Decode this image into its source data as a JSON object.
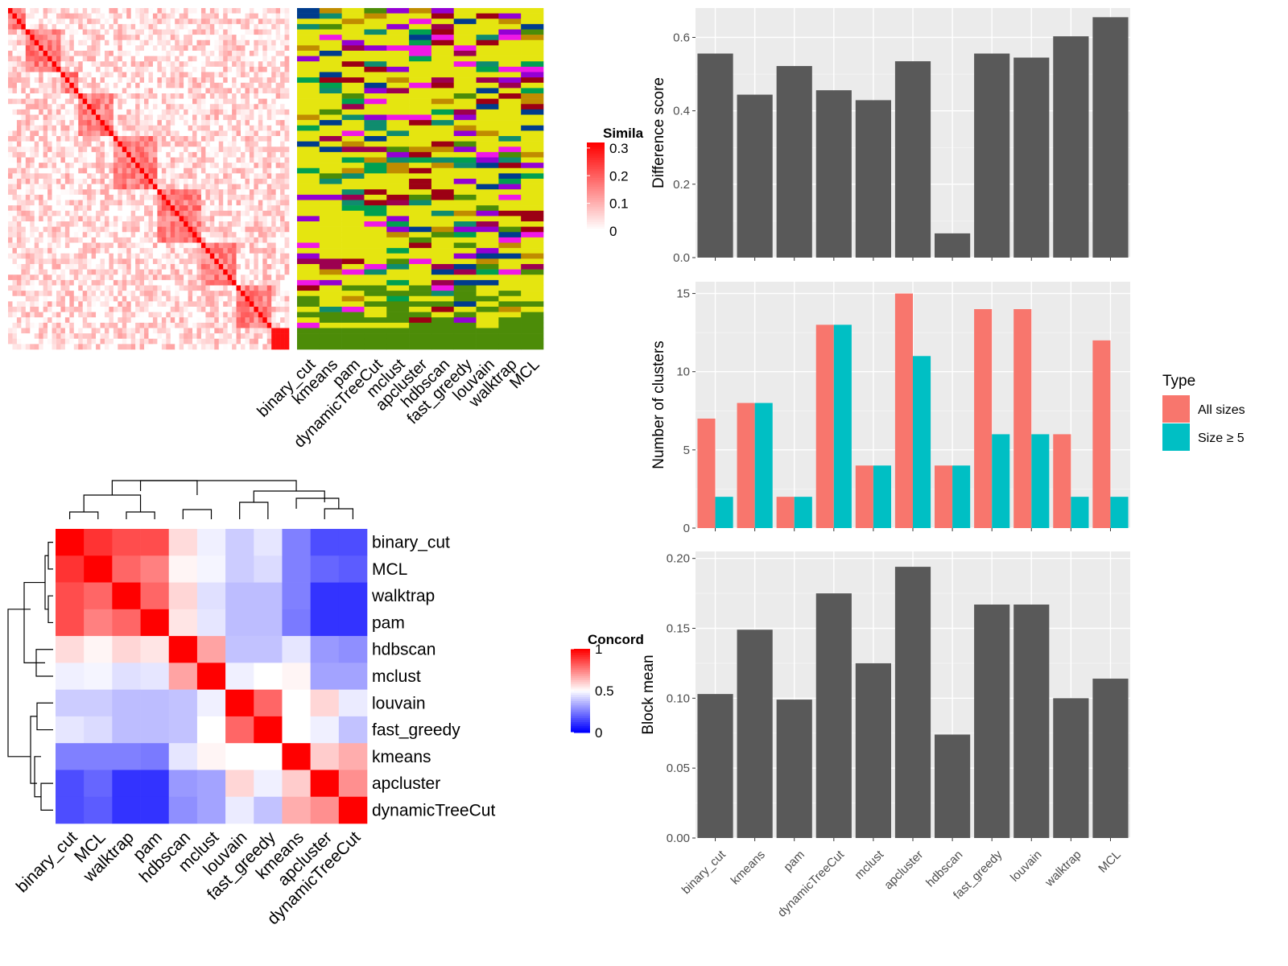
{
  "colors": {
    "bar_dark": "#595959",
    "panel_bg": "#ebebeb",
    "grid": "#ffffff",
    "all_sizes": "#F8766D",
    "size_ge5": "#00BFC4",
    "yellow": "#E5E510",
    "green_band": "#4C8C08"
  },
  "heatmaps": {
    "similarity_legend_title": "Simila",
    "similarity_ticks": [
      "0.3",
      "0.2",
      "0.1",
      "0"
    ],
    "concordance_legend_title": "Concord",
    "concordance_ticks": [
      "1",
      "0.5",
      "0"
    ],
    "membership_columns": [
      "binary_cut",
      "kmeans",
      "pam",
      "dynamicTreeCut",
      "mclust",
      "apcluster",
      "hdbscan",
      "fast_greedy",
      "louvain",
      "walktrap",
      "MCL"
    ]
  },
  "chart_data": [
    {
      "type": "bar",
      "ylabel": "Difference score",
      "ylim": [
        0,
        0.68
      ],
      "yticks": [
        "0.0",
        "0.2",
        "0.4",
        "0.6"
      ],
      "categories": [
        "binary_cut",
        "kmeans",
        "pam",
        "dynamicTreeCut",
        "mclust",
        "apcluster",
        "hdbscan",
        "fast_greedy",
        "louvain",
        "walktrap",
        "MCL"
      ],
      "values": [
        0.556,
        0.444,
        0.522,
        0.456,
        0.429,
        0.535,
        0.066,
        0.556,
        0.545,
        0.603,
        0.655
      ]
    },
    {
      "type": "bar",
      "ylabel": "Number of clusters",
      "ylim": [
        0,
        15.75
      ],
      "yticks": [
        "0",
        "5",
        "10",
        "15"
      ],
      "categories": [
        "binary_cut",
        "kmeans",
        "pam",
        "dynamicTreeCut",
        "mclust",
        "apcluster",
        "hdbscan",
        "fast_greedy",
        "louvain",
        "walktrap",
        "MCL"
      ],
      "legend_title": "Type",
      "legend_position": "right",
      "series": [
        {
          "name": "All sizes",
          "values": [
            7,
            8,
            2,
            13,
            4,
            15,
            4,
            14,
            14,
            6,
            12
          ]
        },
        {
          "name": "Size ≥ 5",
          "values": [
            2,
            8,
            2,
            13,
            4,
            11,
            4,
            6,
            6,
            2,
            2
          ]
        }
      ]
    },
    {
      "type": "bar",
      "ylabel": "Block mean",
      "ylim": [
        0,
        0.205
      ],
      "yticks": [
        "0.00",
        "0.05",
        "0.10",
        "0.15",
        "0.20"
      ],
      "categories": [
        "binary_cut",
        "kmeans",
        "pam",
        "dynamicTreeCut",
        "mclust",
        "apcluster",
        "hdbscan",
        "fast_greedy",
        "louvain",
        "walktrap",
        "MCL"
      ],
      "values": [
        0.103,
        0.149,
        0.099,
        0.175,
        0.125,
        0.194,
        0.074,
        0.167,
        0.167,
        0.1,
        0.114
      ]
    },
    {
      "type": "heatmap",
      "rows": [
        "binary_cut",
        "MCL",
        "walktrap",
        "pam",
        "hdbscan",
        "mclust",
        "louvain",
        "fast_greedy",
        "kmeans",
        "apcluster",
        "dynamicTreeCut"
      ],
      "columns": [
        "binary_cut",
        "MCL",
        "walktrap",
        "pam",
        "hdbscan",
        "mclust",
        "louvain",
        "fast_greedy",
        "kmeans",
        "apcluster",
        "dynamicTreeCut"
      ],
      "values": [
        [
          1.0,
          0.9,
          0.85,
          0.85,
          0.57,
          0.47,
          0.4,
          0.45,
          0.25,
          0.15,
          0.15
        ],
        [
          0.9,
          1.0,
          0.8,
          0.75,
          0.52,
          0.48,
          0.4,
          0.43,
          0.25,
          0.2,
          0.18
        ],
        [
          0.85,
          0.8,
          1.0,
          0.8,
          0.58,
          0.44,
          0.37,
          0.37,
          0.25,
          0.1,
          0.1
        ],
        [
          0.85,
          0.75,
          0.8,
          1.0,
          0.55,
          0.45,
          0.37,
          0.37,
          0.24,
          0.1,
          0.1
        ],
        [
          0.57,
          0.52,
          0.58,
          0.55,
          1.0,
          0.68,
          0.38,
          0.38,
          0.45,
          0.3,
          0.28
        ],
        [
          0.47,
          0.48,
          0.44,
          0.45,
          0.68,
          1.0,
          0.47,
          0.5,
          0.52,
          0.32,
          0.32
        ],
        [
          0.4,
          0.4,
          0.37,
          0.37,
          0.38,
          0.47,
          1.0,
          0.8,
          0.5,
          0.58,
          0.46
        ],
        [
          0.45,
          0.43,
          0.37,
          0.37,
          0.38,
          0.5,
          0.8,
          1.0,
          0.5,
          0.47,
          0.38
        ],
        [
          0.25,
          0.25,
          0.25,
          0.24,
          0.45,
          0.52,
          0.5,
          0.5,
          1.0,
          0.6,
          0.66
        ],
        [
          0.15,
          0.2,
          0.1,
          0.1,
          0.3,
          0.32,
          0.58,
          0.47,
          0.6,
          1.0,
          0.72
        ],
        [
          0.15,
          0.18,
          0.1,
          0.1,
          0.28,
          0.32,
          0.46,
          0.38,
          0.66,
          0.72,
          1.0
        ]
      ]
    }
  ]
}
